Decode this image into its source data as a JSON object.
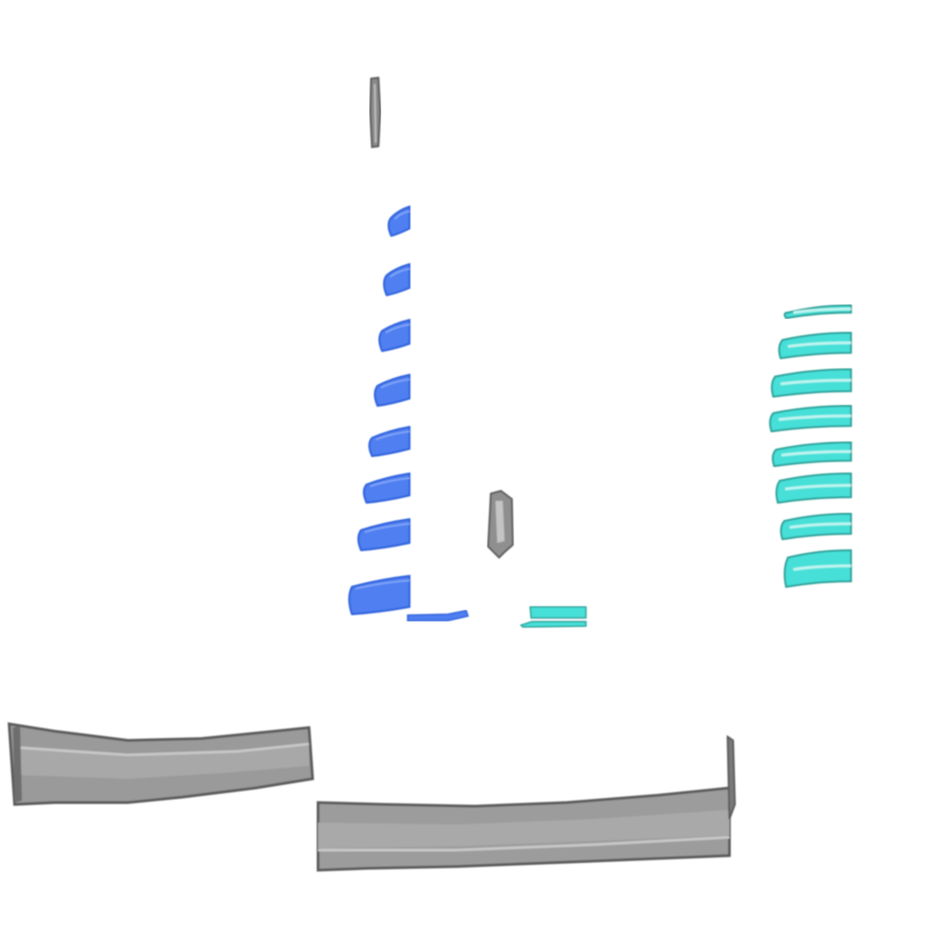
{
  "scene": {
    "background": "#ffffff",
    "palette": {
      "blue_fill": "#4f7ff0",
      "blue_edge": "#2a5fdc",
      "blue_highlight": "#7fa4f7",
      "teal_fill": "#47e0d8",
      "teal_edge": "#2a9e96",
      "teal_highlight": "#bff5f1",
      "grey_fill": "#9a9a9a",
      "grey_edge": "#5c5c5c",
      "grey_highlight": "#bdbdbd"
    },
    "counts": {
      "blue_strokes": 8,
      "teal_strokes": 8
    }
  }
}
